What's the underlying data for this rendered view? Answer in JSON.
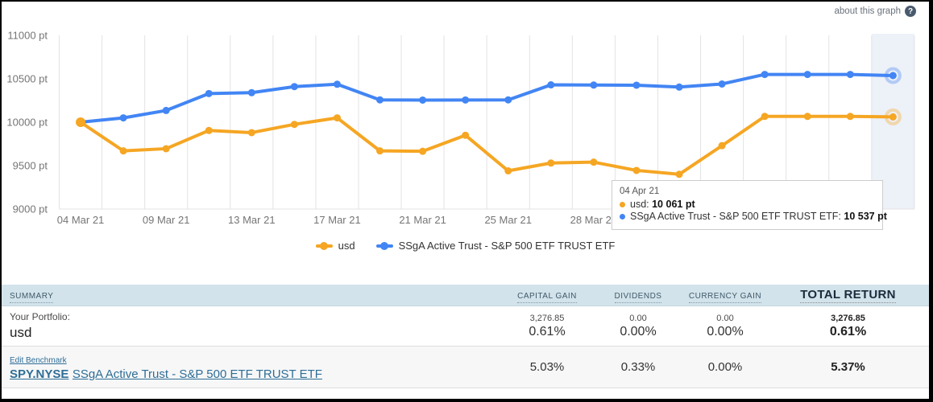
{
  "header": {
    "about_label": "about this graph",
    "help_glyph": "?"
  },
  "chart_data": {
    "type": "line",
    "unit": "pt",
    "num_points": 20,
    "ylim": [
      9000,
      11000
    ],
    "grid": "vertical-only",
    "legend_position": "bottom",
    "y_tick_labels": [
      "11000 pt",
      "10500 pt",
      "10000 pt",
      "9500 pt",
      "9000 pt"
    ],
    "y_tick_values": [
      11000,
      10500,
      10000,
      9500,
      9000
    ],
    "x_ticks": [
      {
        "index": 0,
        "label": "04 Mar 21"
      },
      {
        "index": 2,
        "label": "09 Mar 21"
      },
      {
        "index": 4,
        "label": "13 Mar 21"
      },
      {
        "index": 6,
        "label": "17 Mar 21"
      },
      {
        "index": 8,
        "label": "21 Mar 21"
      },
      {
        "index": 10,
        "label": "25 Mar 21"
      },
      {
        "index": 12,
        "label": "28 Mar 21"
      }
    ],
    "hover_index": 19,
    "hover_band_color": "#edf1f8",
    "axis_text_color": "#757575",
    "gridline_color": "#e3e3e3",
    "series": [
      {
        "id": "usd",
        "name": "usd",
        "color": "#f5a623",
        "halo_color": "rgba(245,166,35,0.35)",
        "values": [
          10000,
          9670,
          9695,
          9905,
          9880,
          9975,
          10050,
          9670,
          9665,
          9850,
          9440,
          9530,
          9540,
          9445,
          9400,
          9730,
          10067,
          10067,
          10067,
          10061
        ]
      },
      {
        "id": "benchmark",
        "name": "SSgA Active Trust - S&P 500 ETF TRUST ETF",
        "color": "#4285f4",
        "halo_color": "rgba(66,133,244,0.35)",
        "values": [
          10000,
          10050,
          10135,
          10330,
          10340,
          10410,
          10437,
          10257,
          10255,
          10256,
          10257,
          10430,
          10428,
          10426,
          10405,
          10440,
          10550,
          10550,
          10550,
          10537
        ]
      }
    ]
  },
  "tooltip": {
    "date": "04 Apr 21",
    "rows": [
      {
        "label": "usd",
        "value": "10 061 pt",
        "color": "#f5a623"
      },
      {
        "label": "SSgA Active Trust - S&P 500 ETF TRUST ETF",
        "value": "10 537 pt",
        "color": "#4285f4"
      }
    ]
  },
  "table": {
    "headers": [
      "SUMMARY",
      "CAPITAL GAIN",
      "DIVIDENDS",
      "CURRENCY GAIN",
      "TOTAL RETURN"
    ],
    "portfolio": {
      "label": "Your Portfolio:",
      "name": "usd",
      "capital_gain": {
        "amount": "3,276.85",
        "percent": "0.61%"
      },
      "dividends": {
        "amount": "0.00",
        "percent": "0.00%"
      },
      "currency_gain": {
        "amount": "0.00",
        "percent": "0.00%"
      },
      "total_return": {
        "amount": "3,276.85",
        "percent": "0.61%"
      }
    },
    "benchmark": {
      "edit_label": "Edit Benchmark",
      "ticker": "SPY.NYSE",
      "name": "SSgA Active Trust - S&P 500 ETF TRUST ETF",
      "capital_gain": "5.03%",
      "dividends": "0.33%",
      "currency_gain": "0.00%",
      "total_return": "5.37%"
    },
    "link_color": "#2e6e96",
    "header_bg": "#d3e3eb"
  }
}
